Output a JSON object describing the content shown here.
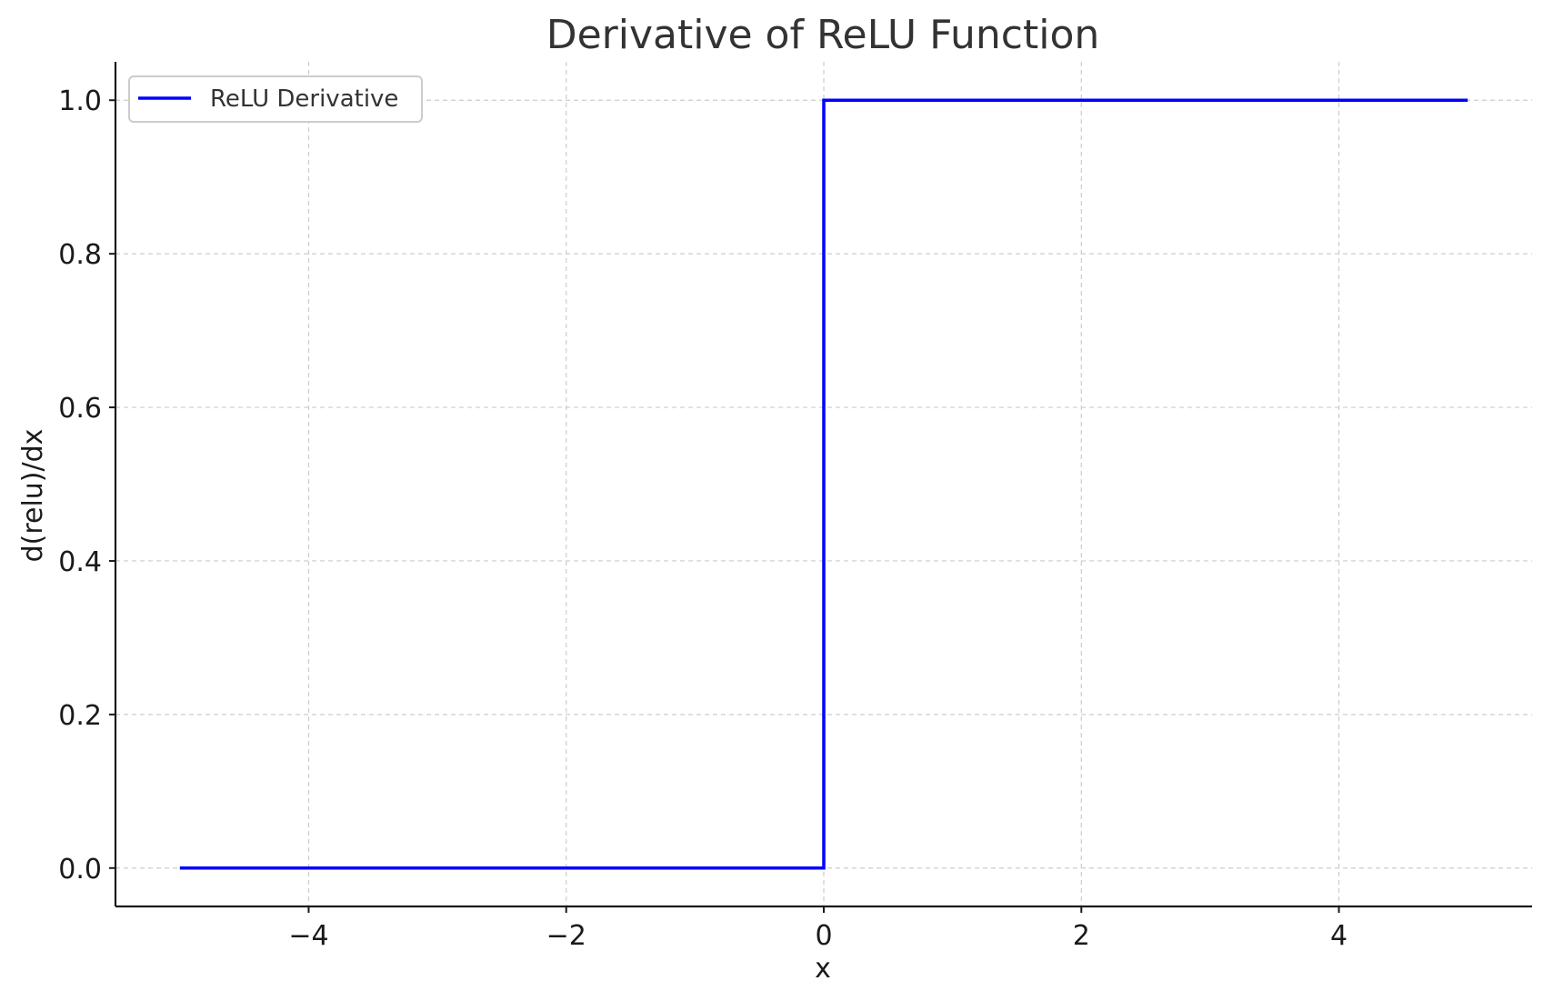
{
  "chart_data": {
    "type": "line",
    "title": "Derivative of ReLU Function",
    "xlabel": "x",
    "ylabel": "d(relu)/dx",
    "xlim": [
      -5.5,
      5.5
    ],
    "ylim": [
      -0.05,
      1.05
    ],
    "x_ticks": [
      -4,
      -2,
      0,
      2,
      4
    ],
    "x_tick_labels": [
      "−4",
      "−2",
      "0",
      "2",
      "4"
    ],
    "y_ticks": [
      0.0,
      0.2,
      0.4,
      0.6,
      0.8,
      1.0
    ],
    "y_tick_labels": [
      "0.0",
      "0.2",
      "0.4",
      "0.6",
      "0.8",
      "1.0"
    ],
    "grid": true,
    "legend_position": "top-left",
    "series": [
      {
        "name": "ReLU Derivative",
        "color": "#0000ff",
        "x": [
          -5,
          0,
          0,
          5
        ],
        "y": [
          0,
          0,
          1,
          1
        ]
      }
    ]
  }
}
